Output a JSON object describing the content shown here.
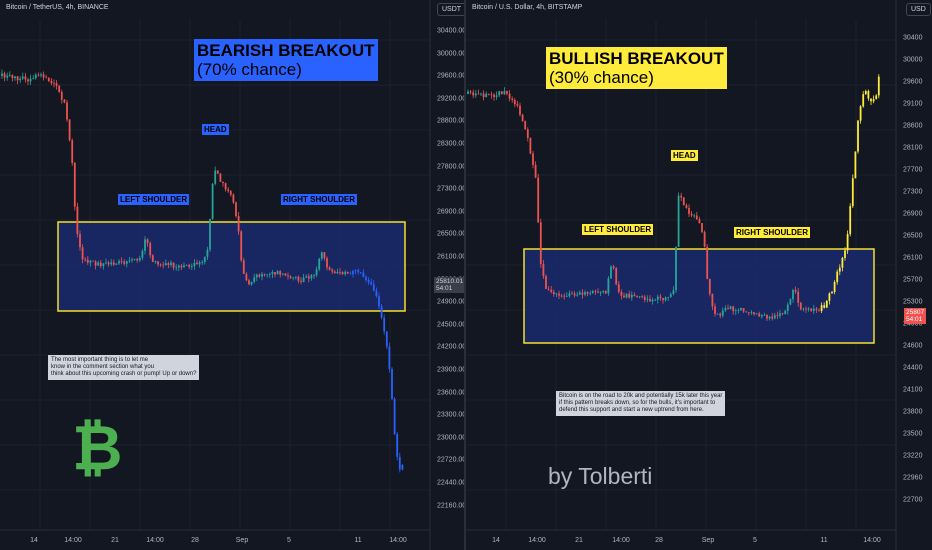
{
  "left": {
    "symbol": "Bitcoin / TetherUS, 4h, BINANCE",
    "currency": "USDT",
    "title_line1": "BEARISH BREAKOUT",
    "title_line2": "(70% chance)",
    "head": "HEAD",
    "left_shoulder": "LEFT SHOULDER",
    "right_shoulder": "RIGHT SHOULDER",
    "price_tag": "25810.01",
    "countdown": "54:01",
    "note": [
      "The most important thing is to let me",
      "know in the comment section what you",
      "think about this upcoming crash or pump! Up or down?"
    ],
    "logo": "₿",
    "y_ticks": [
      "30400.00",
      "30000.00",
      "29600.00",
      "29200.00",
      "28800.00",
      "28300.00",
      "27800.00",
      "27300.00",
      "26900.00",
      "26500.00",
      "26100.00",
      "25300.00",
      "24900.00",
      "24500.00",
      "24200.00",
      "23900.00",
      "23600.00",
      "23300.00",
      "23000.00",
      "22720.00",
      "22440.00",
      "22160.00"
    ],
    "x_ticks": [
      "14",
      "14:00",
      "21",
      "14:00",
      "28",
      "Sep",
      "5",
      "11",
      "14:00"
    ]
  },
  "right": {
    "symbol": "Bitcoin / U.S. Dollar, 4h, BITSTAMP",
    "currency": "USD",
    "title_line1": "BULLISH BREAKOUT",
    "title_line2": "(30% chance)",
    "head": "HEAD",
    "left_shoulder": "LEFT SHOULDER",
    "right_shoulder": "RIGHT SHOULDER",
    "price_tag": "25807",
    "countdown": "54:01",
    "note": [
      "Bitcoin is on the road to 20k and potentially 15k later this year",
      "if this pattern breaks down, so for the bulls, it's important to",
      "defend this support and start a new uptrend from here."
    ],
    "signature": "by Tolberti",
    "y_ticks": [
      "30400",
      "30000",
      "29600",
      "29100",
      "28600",
      "28100",
      "27700",
      "27300",
      "26900",
      "26500",
      "26100",
      "25700",
      "25300",
      "24900",
      "24600",
      "24400",
      "24100",
      "23800",
      "23500",
      "23220",
      "22960",
      "22700"
    ],
    "x_ticks": [
      "14",
      "14:00",
      "21",
      "14:00",
      "28",
      "Sep",
      "5",
      "11",
      "14:00"
    ]
  },
  "colors": {
    "background": "#131722",
    "bull": "#26a69a",
    "bear": "#ef5350",
    "projection_bear": "#2962ff",
    "projection_bull": "#ffeb3b",
    "zone_border": "#f5e12b",
    "zone_fill": "#1a2a6c",
    "bear_title_bg": "#2962ff",
    "bull_title_bg": "#ffeb3b",
    "label_blue": "#2962ff",
    "label_yellow": "#ffeb3b"
  },
  "chart_data": [
    {
      "type": "candlestick",
      "title": "BEARISH BREAKOUT (70% chance)",
      "symbol": "Bitcoin / TetherUS, 4h, BINANCE",
      "ylim": [
        22160,
        30400
      ],
      "pattern": "head and shoulders",
      "support_zone": [
        25350,
        26800
      ],
      "points": {
        "head_high": 27900,
        "left_shoulder_high": 26650,
        "right_shoulder_high": 26400,
        "last_price": 25810.01
      },
      "projection": {
        "direction": "down",
        "target": 22160
      }
    },
    {
      "type": "candlestick",
      "title": "BULLISH BREAKOUT (30% chance)",
      "symbol": "Bitcoin / U.S. Dollar, 4h, BITSTAMP",
      "ylim": [
        22700,
        30400
      ],
      "pattern": "head and shoulders",
      "support_zone": [
        25400,
        26800
      ],
      "points": {
        "head_high": 27850,
        "left_shoulder_high": 26700,
        "right_shoulder_high": 26200,
        "last_price": 25807
      },
      "projection": {
        "direction": "up",
        "target": 30400
      }
    }
  ]
}
